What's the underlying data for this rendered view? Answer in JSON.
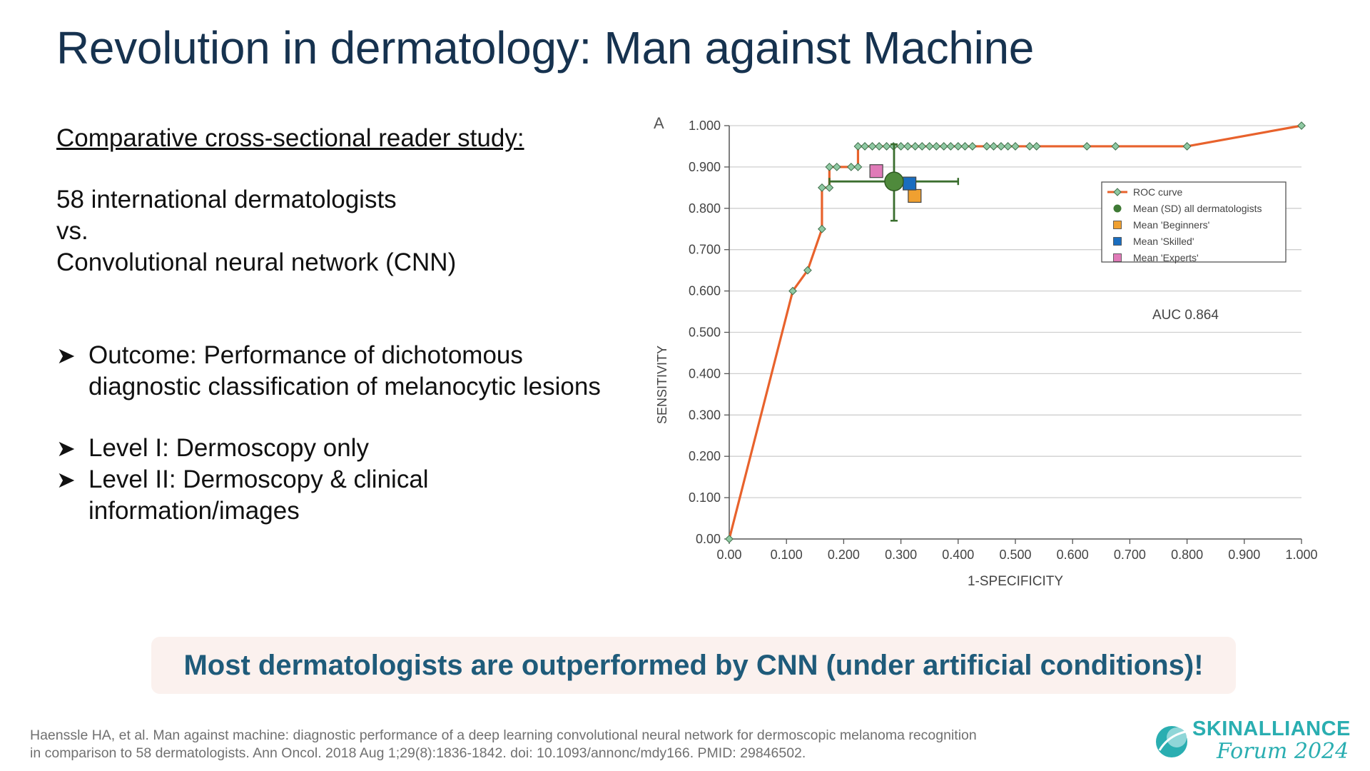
{
  "title": "Revolution in dermatology: Man against Machine",
  "left": {
    "subhead": "Comparative cross-sectional reader study:",
    "line1": "58 international dermatologists",
    "line2": "vs.",
    "line3": "Convolutional neural network (CNN)",
    "bullets": [
      {
        "lines": [
          "Outcome: Performance of dichotomous",
          "diagnostic classification of melanocytic lesions"
        ]
      },
      {
        "lines": [
          "Level I: Dermoscopy only"
        ]
      },
      {
        "lines": [
          "Level II: Dermoscopy & clinical",
          "information/images"
        ]
      }
    ]
  },
  "banner": "Most dermatologists are outperformed by CNN (under artificial conditions)!",
  "citation": {
    "line1": "Haenssle HA, et al. Man against machine: diagnostic performance of a deep learning convolutional neural network for dermoscopic melanoma recognition",
    "line2": "in comparison to 58 dermatologists. Ann Oncol. 2018 Aug 1;29(8):1836-1842. doi: 10.1093/annonc/mdy166. PMID: 29846502."
  },
  "logo": {
    "brand": "SKINALLIANCE",
    "forum": "Forum 2024"
  },
  "chart_data": {
    "type": "line",
    "panel_label": "A",
    "xlabel": "1-SPECIFICITY",
    "ylabel": "SENSITIVITY",
    "xlim": [
      0,
      1
    ],
    "ylim": [
      0,
      1
    ],
    "x_ticks": [
      "0.00",
      "0.100",
      "0.200",
      "0.300",
      "0.400",
      "0.500",
      "0.600",
      "0.700",
      "0.800",
      "0.900",
      "1.000"
    ],
    "y_ticks": [
      "0.00",
      "0.100",
      "0.200",
      "0.300",
      "0.400",
      "0.500",
      "0.600",
      "0.700",
      "0.800",
      "0.900",
      "1.000"
    ],
    "grid": "horizontal",
    "legend_position": "right",
    "annotation": "AUC 0.864",
    "roc": {
      "name": "ROC curve",
      "color": "#e8622c",
      "marker_color": "#8fc9a3",
      "points": [
        [
          0.0,
          0.0
        ],
        [
          0.111,
          0.6
        ],
        [
          0.137,
          0.65
        ],
        [
          0.162,
          0.75
        ],
        [
          0.162,
          0.85
        ],
        [
          0.175,
          0.85
        ],
        [
          0.175,
          0.9
        ],
        [
          0.188,
          0.9
        ],
        [
          0.213,
          0.9
        ],
        [
          0.225,
          0.9
        ],
        [
          0.225,
          0.95
        ],
        [
          0.237,
          0.95
        ],
        [
          0.25,
          0.95
        ],
        [
          0.262,
          0.95
        ],
        [
          0.275,
          0.95
        ],
        [
          0.287,
          0.95
        ],
        [
          0.3,
          0.95
        ],
        [
          0.312,
          0.95
        ],
        [
          0.325,
          0.95
        ],
        [
          0.337,
          0.95
        ],
        [
          0.35,
          0.95
        ],
        [
          0.362,
          0.95
        ],
        [
          0.375,
          0.95
        ],
        [
          0.387,
          0.95
        ],
        [
          0.4,
          0.95
        ],
        [
          0.412,
          0.95
        ],
        [
          0.425,
          0.95
        ],
        [
          0.45,
          0.95
        ],
        [
          0.462,
          0.95
        ],
        [
          0.475,
          0.95
        ],
        [
          0.487,
          0.95
        ],
        [
          0.5,
          0.95
        ],
        [
          0.525,
          0.95
        ],
        [
          0.537,
          0.95
        ],
        [
          0.625,
          0.95
        ],
        [
          0.675,
          0.95
        ],
        [
          0.8,
          0.95
        ],
        [
          1.0,
          1.0
        ]
      ]
    },
    "dermatologists": {
      "name": "Mean (SD) all dermatologists",
      "color": "#3a6e2e",
      "x": 0.288,
      "y": 0.865,
      "x_range": [
        0.175,
        0.4
      ],
      "y_range": [
        0.77,
        0.955
      ]
    },
    "groups": [
      {
        "name": "Mean 'Beginners'",
        "x": 0.324,
        "y": 0.83,
        "color": "#f0a030"
      },
      {
        "name": "Mean 'Skilled'",
        "x": 0.315,
        "y": 0.86,
        "color": "#1a6dbf"
      },
      {
        "name": "Mean 'Experts'",
        "x": 0.257,
        "y": 0.89,
        "color": "#e07ab8"
      }
    ],
    "legend": [
      {
        "label": "ROC curve",
        "kind": "roc-curve"
      },
      {
        "label": "Mean (SD) all dermatologists",
        "kind": "dermatologists"
      },
      {
        "label": "Mean 'Beginners'",
        "kind": "group",
        "group_index": 0
      },
      {
        "label": "Mean 'Skilled'",
        "kind": "group",
        "group_index": 1
      },
      {
        "label": "Mean 'Experts'",
        "kind": "group",
        "group_index": 2
      }
    ]
  }
}
